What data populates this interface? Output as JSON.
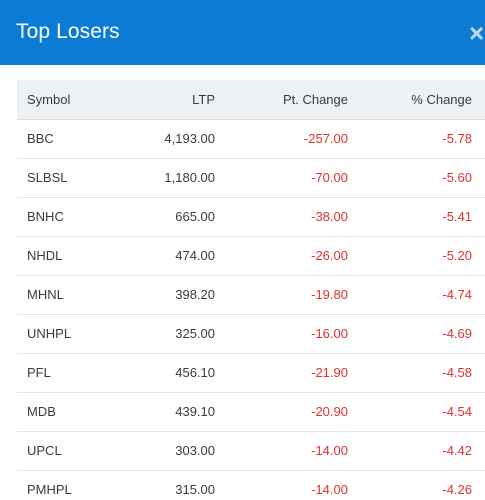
{
  "modal": {
    "title": "Top Losers",
    "close_glyph": "×"
  },
  "table": {
    "headers": {
      "symbol": "Symbol",
      "ltp": "LTP",
      "pt_change": "Pt. Change",
      "pct_change": "% Change"
    },
    "rows": [
      {
        "symbol": "BBC",
        "ltp": "4,193.00",
        "pt_change": "-257.00",
        "pct_change": "-5.78"
      },
      {
        "symbol": "SLBSL",
        "ltp": "1,180.00",
        "pt_change": "-70.00",
        "pct_change": "-5.60"
      },
      {
        "symbol": "BNHC",
        "ltp": "665.00",
        "pt_change": "-38.00",
        "pct_change": "-5.41"
      },
      {
        "symbol": "NHDL",
        "ltp": "474.00",
        "pt_change": "-26.00",
        "pct_change": "-5.20"
      },
      {
        "symbol": "MHNL",
        "ltp": "398.20",
        "pt_change": "-19.80",
        "pct_change": "-4.74"
      },
      {
        "symbol": "UNHPL",
        "ltp": "325.00",
        "pt_change": "-16.00",
        "pct_change": "-4.69"
      },
      {
        "symbol": "PFL",
        "ltp": "456.10",
        "pt_change": "-21.90",
        "pct_change": "-4.58"
      },
      {
        "symbol": "MDB",
        "ltp": "439.10",
        "pt_change": "-20.90",
        "pct_change": "-4.54"
      },
      {
        "symbol": "UPCL",
        "ltp": "303.00",
        "pt_change": "-14.00",
        "pct_change": "-4.42"
      },
      {
        "symbol": "PMHPL",
        "ltp": "315.00",
        "pt_change": "-14.00",
        "pct_change": "-4.26"
      }
    ]
  },
  "colors": {
    "header_bg": "#0b7bd6",
    "negative": "#e03131",
    "table_header_bg": "#eef1f4"
  }
}
